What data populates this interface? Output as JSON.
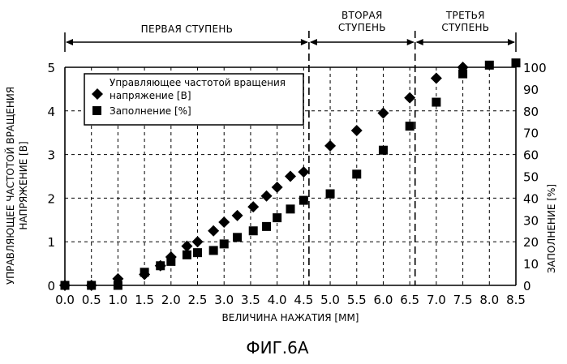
{
  "chart_data": {
    "type": "scatter",
    "caption": "ФИГ.6A",
    "xlabel": "ВЕЛИЧИНА НАЖАТИЯ [ММ]",
    "ylabel_left_line1": "УПРАВЛЯЮЩЕЕ ЧАСТОТОЙ ВРАЩЕНИЯ",
    "ylabel_left_line2": "НАПРЯЖЕНИЕ [В]",
    "ylabel_right": "ЗАПОЛНЕНИЕ [%]",
    "xlim": [
      0,
      8.5
    ],
    "ylim_left": [
      0,
      5
    ],
    "ylim_right": [
      0,
      100
    ],
    "x_ticks": [
      "0.0",
      "0.5",
      "1.0",
      "1.5",
      "2.0",
      "2.5",
      "3.0",
      "3.5",
      "4.0",
      "4.5",
      "5.0",
      "5.5",
      "6.0",
      "6.5",
      "7.0",
      "7.5",
      "8.0",
      "8.5"
    ],
    "y_left_ticks": [
      "0",
      "1",
      "2",
      "3",
      "4",
      "5"
    ],
    "y_right_ticks": [
      "0",
      "10",
      "20",
      "30",
      "40",
      "50",
      "60",
      "70",
      "80",
      "90",
      "100"
    ],
    "stages": [
      {
        "label_lines": [
          "ПЕРВАЯ СТУПЕНЬ"
        ],
        "x_start": 0,
        "x_end": 4.6
      },
      {
        "label_lines": [
          "ВТОРАЯ",
          "СТУПЕНЬ"
        ],
        "x_start": 4.6,
        "x_end": 6.6
      },
      {
        "label_lines": [
          "ТРЕТЬЯ",
          "СТУПЕНЬ"
        ],
        "x_start": 6.6,
        "x_end": 8.5
      }
    ],
    "legend": {
      "placement": "top-left",
      "voltage_line1": "Управляющее частотой вращения",
      "voltage_line2": "напряжение [В]",
      "duty": "Заполнение [%]"
    },
    "grid": true,
    "series": [
      {
        "name": "Управляющее частотой вращения напряжение [В]",
        "marker": "diamond",
        "axis": "left",
        "points": [
          [
            0.0,
            0.0
          ],
          [
            0.5,
            0.0
          ],
          [
            1.0,
            0.15
          ],
          [
            1.5,
            0.25
          ],
          [
            1.8,
            0.45
          ],
          [
            2.0,
            0.65
          ],
          [
            2.3,
            0.9
          ],
          [
            2.5,
            1.0
          ],
          [
            2.8,
            1.25
          ],
          [
            3.0,
            1.45
          ],
          [
            3.25,
            1.6
          ],
          [
            3.55,
            1.8
          ],
          [
            3.8,
            2.05
          ],
          [
            4.0,
            2.25
          ],
          [
            4.25,
            2.5
          ],
          [
            4.5,
            2.6
          ],
          [
            5.0,
            3.2
          ],
          [
            5.5,
            3.55
          ],
          [
            6.0,
            3.95
          ],
          [
            6.5,
            4.3
          ],
          [
            7.0,
            4.75
          ],
          [
            7.5,
            5.0
          ]
        ]
      },
      {
        "name": "Заполнение [%]",
        "marker": "square",
        "axis": "right",
        "points": [
          [
            0.0,
            0
          ],
          [
            0.5,
            0
          ],
          [
            1.0,
            0
          ],
          [
            1.5,
            6
          ],
          [
            1.8,
            9
          ],
          [
            2.0,
            11
          ],
          [
            2.3,
            14
          ],
          [
            2.5,
            15
          ],
          [
            2.8,
            16
          ],
          [
            3.0,
            19
          ],
          [
            3.25,
            22
          ],
          [
            3.55,
            25
          ],
          [
            3.8,
            27
          ],
          [
            4.0,
            31
          ],
          [
            4.25,
            35
          ],
          [
            4.5,
            39
          ],
          [
            5.0,
            42
          ],
          [
            5.5,
            51
          ],
          [
            6.0,
            62
          ],
          [
            6.5,
            73
          ],
          [
            7.0,
            84
          ],
          [
            7.5,
            97
          ],
          [
            8.0,
            101
          ],
          [
            8.5,
            102
          ]
        ]
      }
    ]
  }
}
